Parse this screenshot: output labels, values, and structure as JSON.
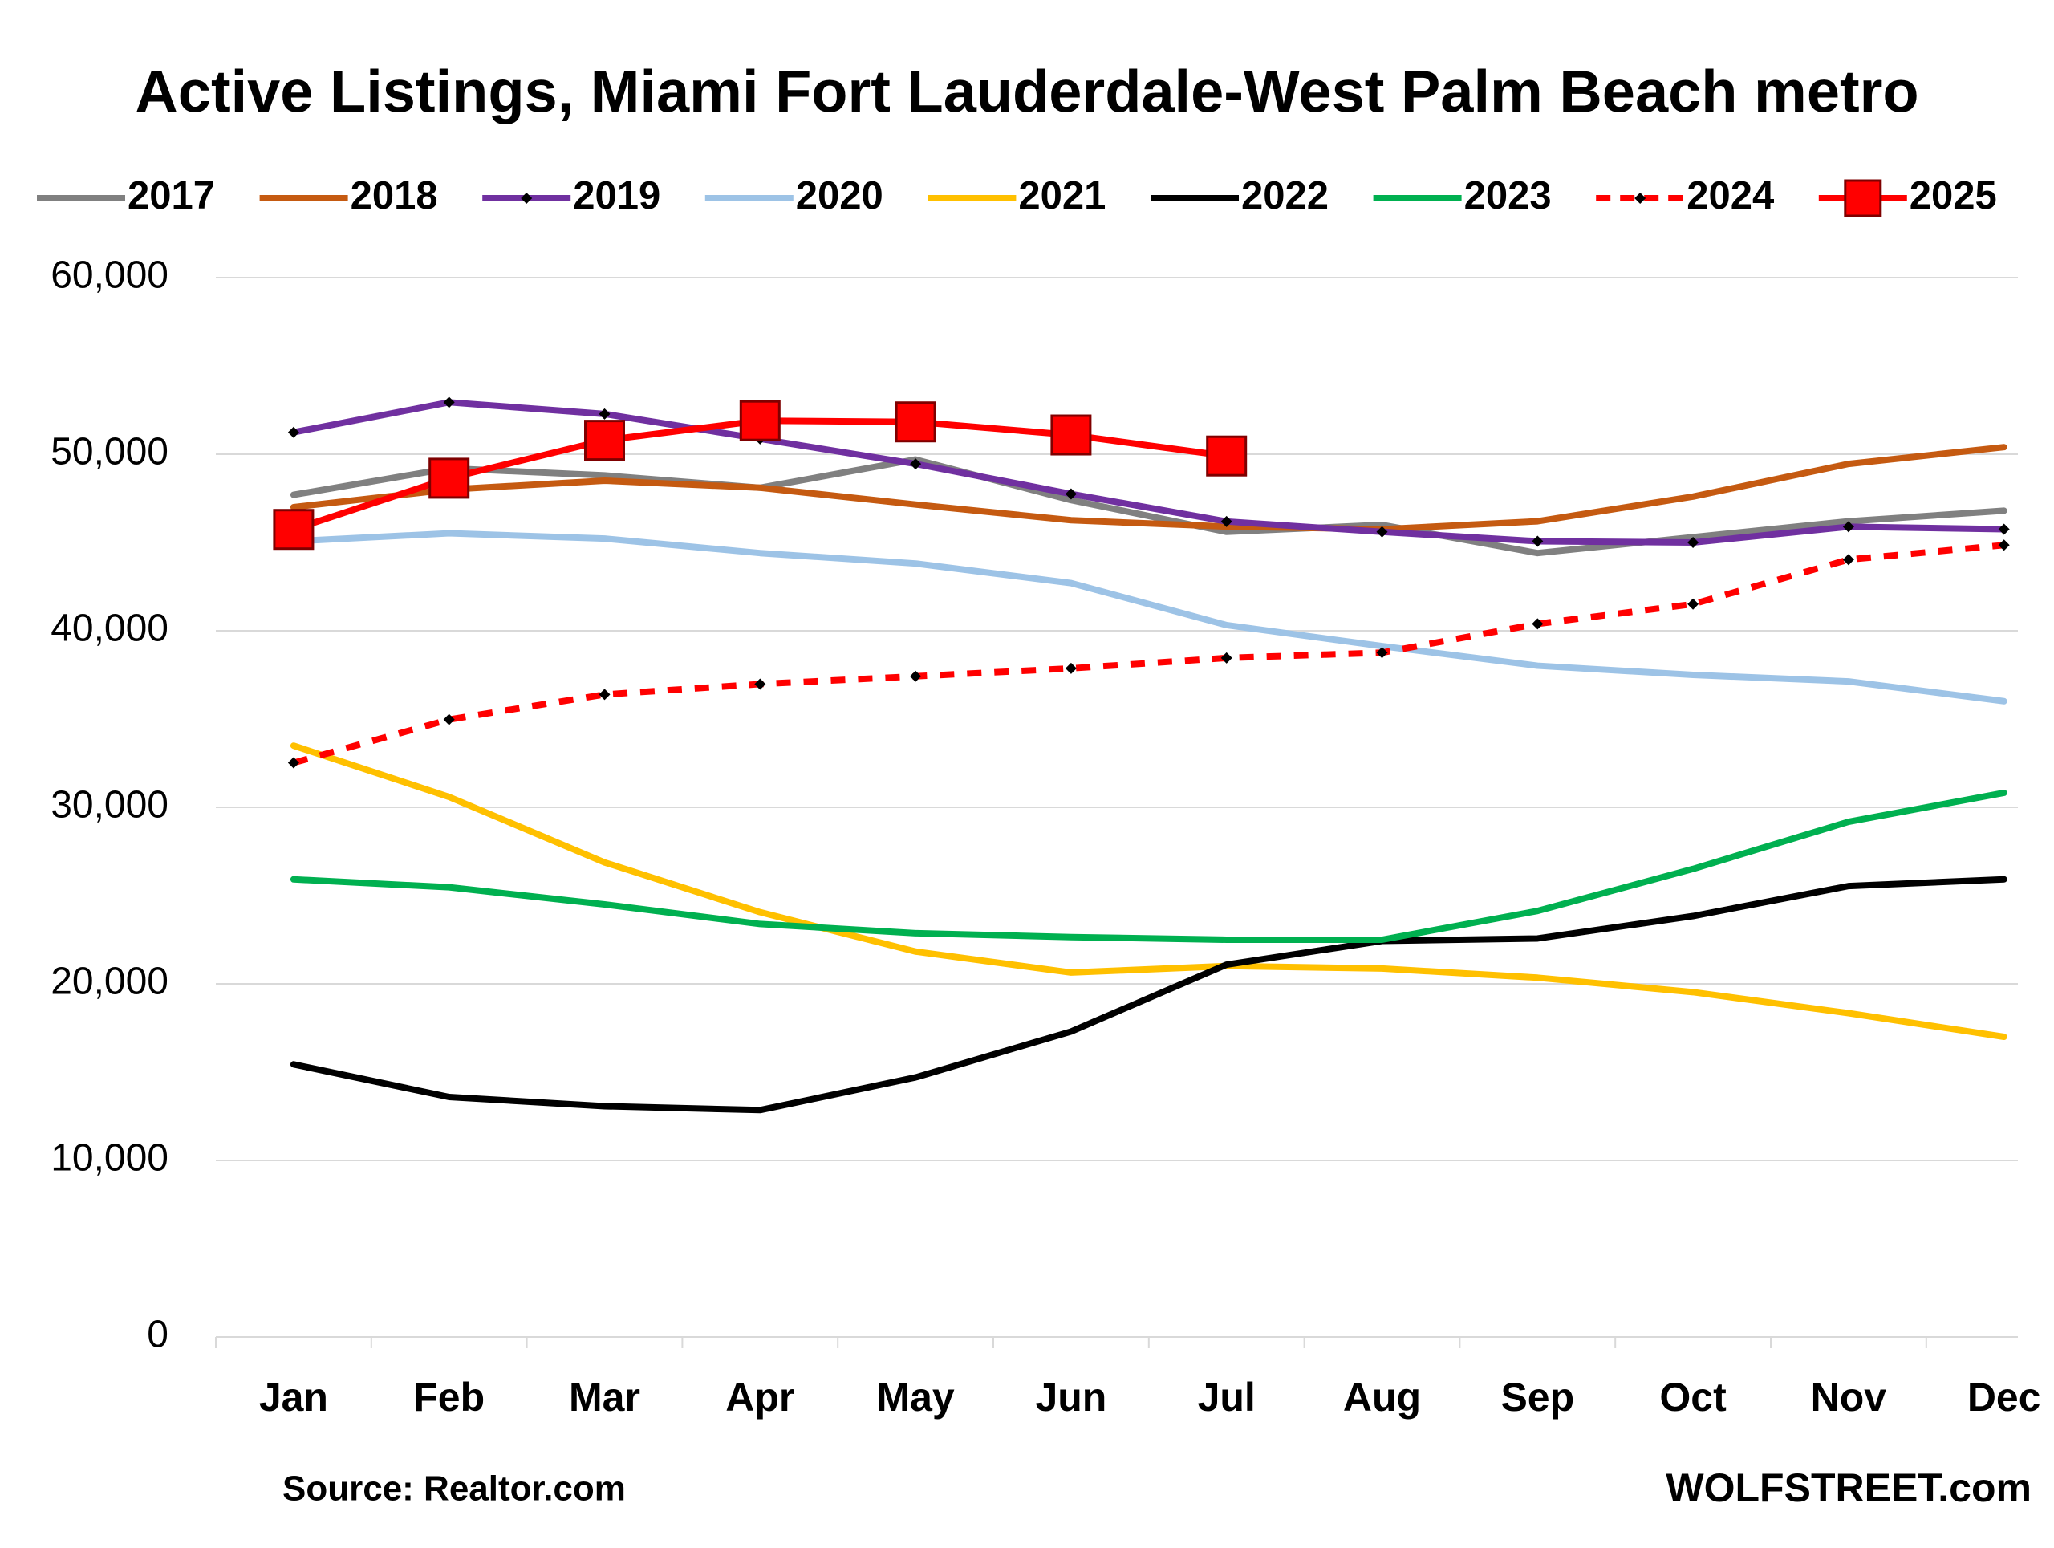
{
  "chart_data": {
    "type": "line",
    "title": "Active Listings, Miami Fort Lauderdale-West Palm Beach metro",
    "source": "Source: Realtor.com",
    "credit": "WOLFSTREET.com",
    "categories": [
      "Jan",
      "Feb",
      "Mar",
      "Apr",
      "May",
      "Jun",
      "Jul",
      "Aug",
      "Sep",
      "Oct",
      "Nov",
      "Dec"
    ],
    "ylim": [
      0,
      60000
    ],
    "yticks": [
      0,
      {
        "value": 10000,
        "label": "10,000"
      },
      {
        "value": 20000,
        "label": "20,000"
      },
      {
        "value": 30000,
        "label": "30,000"
      },
      {
        "value": 40000,
        "label": "40,000"
      },
      {
        "value": 50000,
        "label": "50,000"
      },
      {
        "value": 60000,
        "label": "60,000"
      }
    ],
    "grid": true,
    "legend": "top",
    "series": [
      {
        "name": "2017",
        "color": "#808080",
        "values": [
          47700,
          49200,
          48800,
          48100,
          49700,
          47400,
          45600,
          46000,
          44400,
          45300,
          46200,
          46800
        ]
      },
      {
        "name": "2018",
        "color": "#c55a11",
        "values": [
          47000,
          48000,
          48500,
          48100,
          47150,
          46260,
          45900,
          45750,
          46200,
          47600,
          49450,
          50400
        ]
      },
      {
        "name": "2019",
        "color": "#7030a0",
        "marker": "diamond",
        "values": [
          51240,
          52940,
          52280,
          50870,
          49450,
          47750,
          46190,
          45600,
          45070,
          45000,
          45890,
          45750
        ]
      },
      {
        "name": "2020",
        "color": "#9dc3e6",
        "values": [
          45070,
          45520,
          45220,
          44400,
          43810,
          42700,
          40320,
          39130,
          38020,
          37500,
          37130,
          36010
        ]
      },
      {
        "name": "2021",
        "color": "#ffc000",
        "values": [
          33490,
          30590,
          26880,
          24060,
          21830,
          20640,
          21010,
          20870,
          20350,
          19530,
          18340,
          17000
        ]
      },
      {
        "name": "2022",
        "color": "#000000",
        "values": [
          15440,
          13590,
          13070,
          12850,
          14700,
          17300,
          21090,
          22430,
          22570,
          23840,
          25540,
          25920
        ]
      },
      {
        "name": "2023",
        "color": "#00b050",
        "values": [
          25920,
          25470,
          24500,
          23390,
          22870,
          22650,
          22500,
          22500,
          24130,
          26510,
          29180,
          30820
        ]
      },
      {
        "name": "2024",
        "color": "#ff0000",
        "dashed": true,
        "marker": "diamond",
        "values": [
          32520,
          34970,
          36390,
          36980,
          37420,
          37870,
          38460,
          38760,
          40390,
          41510,
          44030,
          44850
        ]
      },
      {
        "name": "2025",
        "color": "#ff0000",
        "marker": "square",
        "values": [
          45740,
          48640,
          50790,
          51900,
          51830,
          51090,
          49900,
          null,
          null,
          null,
          null,
          null
        ]
      }
    ]
  }
}
